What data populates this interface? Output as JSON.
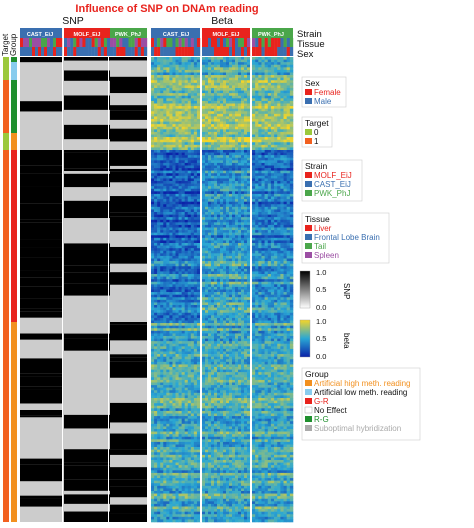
{
  "chart_data": {
    "type": "heatmap",
    "title": "Influence of SNP on DNAm reading",
    "panels": [
      {
        "name": "SNP",
        "title": "SNP"
      },
      {
        "name": "Beta",
        "title": "Beta"
      }
    ],
    "column_annotation_labels": [
      "Strain",
      "Tissue",
      "Sex"
    ],
    "row_annotation_labels": [
      "Target",
      "Group"
    ],
    "strain_labels": [
      "CAST_EiJ",
      "MOLF_EiJ",
      "PWK_PhJ"
    ],
    "legends": {
      "sex": {
        "title": "Sex",
        "items": [
          {
            "label": "Female",
            "color": "#e8231d"
          },
          {
            "label": "Male",
            "color": "#3a6fb0"
          }
        ]
      },
      "target": {
        "title": "Target",
        "items": [
          {
            "label": "0",
            "color": "#9bc93c"
          },
          {
            "label": "1",
            "color": "#f2601f"
          }
        ]
      },
      "strain": {
        "title": "Strain",
        "items": [
          {
            "label": "MOLF_EiJ",
            "color": "#e8231d"
          },
          {
            "label": "CAST_EiJ",
            "color": "#3a6fb0"
          },
          {
            "label": "PWK_PhJ",
            "color": "#4aa64a"
          }
        ]
      },
      "tissue": {
        "title": "Tissue",
        "items": [
          {
            "label": "Liver",
            "color": "#e8231d"
          },
          {
            "label": "Frontal Lobe Brain",
            "color": "#3a6fb0"
          },
          {
            "label": "Tail",
            "color": "#4aa64a"
          },
          {
            "label": "Spleen",
            "color": "#9b4ea3"
          }
        ]
      },
      "snp": {
        "title": "SNP",
        "range": [
          0,
          1
        ],
        "ticks": [
          "1.0",
          "0.5",
          "0.0"
        ],
        "colors": [
          "#000000",
          "#ffffff"
        ]
      },
      "beta": {
        "title": "beta",
        "range": [
          0,
          1
        ],
        "ticks": [
          "1.0",
          "0.5",
          "0.0"
        ],
        "colors": [
          "#0b22a8",
          "#2aa7d4",
          "#f5d527"
        ]
      },
      "group": {
        "title": "Group",
        "items": [
          {
            "label": "Artificial high meth. reading",
            "color": "#f2901f"
          },
          {
            "label": "Artificial low meth. reading",
            "color": "#88ccee"
          },
          {
            "label": "G-R",
            "color": "#e8231d"
          },
          {
            "label": "No Effect",
            "color": "#ffffff",
            "text_color": "#111111"
          },
          {
            "label": "R-G",
            "color": "#1f8f2e"
          },
          {
            "label": "Suboptimal hybridization",
            "color": "#aaaaaa"
          }
        ]
      }
    },
    "palette": {
      "grid_gray": "#cccccc",
      "grid_black": "#000000",
      "beta_low": "#0b22a8",
      "beta_mid": "#2aa7d4",
      "beta_high": "#f5d527"
    }
  }
}
